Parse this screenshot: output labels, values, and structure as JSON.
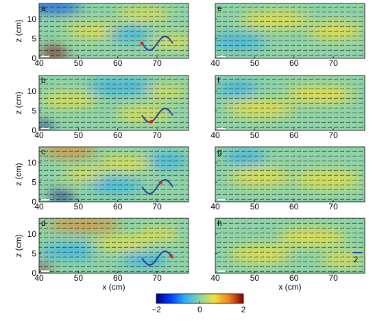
{
  "chart_data": {
    "type": "quiver",
    "panels": [
      {
        "label": "a"
      },
      {
        "label": "b"
      },
      {
        "label": "c"
      },
      {
        "label": "d"
      },
      {
        "label": "e"
      },
      {
        "label": "f"
      },
      {
        "label": "g"
      },
      {
        "label": "h"
      }
    ],
    "xlabel": "x (cm)",
    "ylabel": "z (cm)",
    "xlim": [
      40,
      78
    ],
    "ylim": [
      0,
      14
    ],
    "xticks": [
      40,
      50,
      60,
      70
    ],
    "yticks": [
      0,
      5,
      10
    ],
    "colorbar": {
      "lim": [
        -2,
        2
      ],
      "ticks": [
        {
          "value": -2,
          "label": "−2"
        },
        0,
        2
      ],
      "colors": [
        "#00007f",
        "#0040ff",
        "#30b0f0",
        "#8fd3a8",
        "#f0e040",
        "#f08020",
        "#800000"
      ]
    },
    "scale_label": "2"
  }
}
